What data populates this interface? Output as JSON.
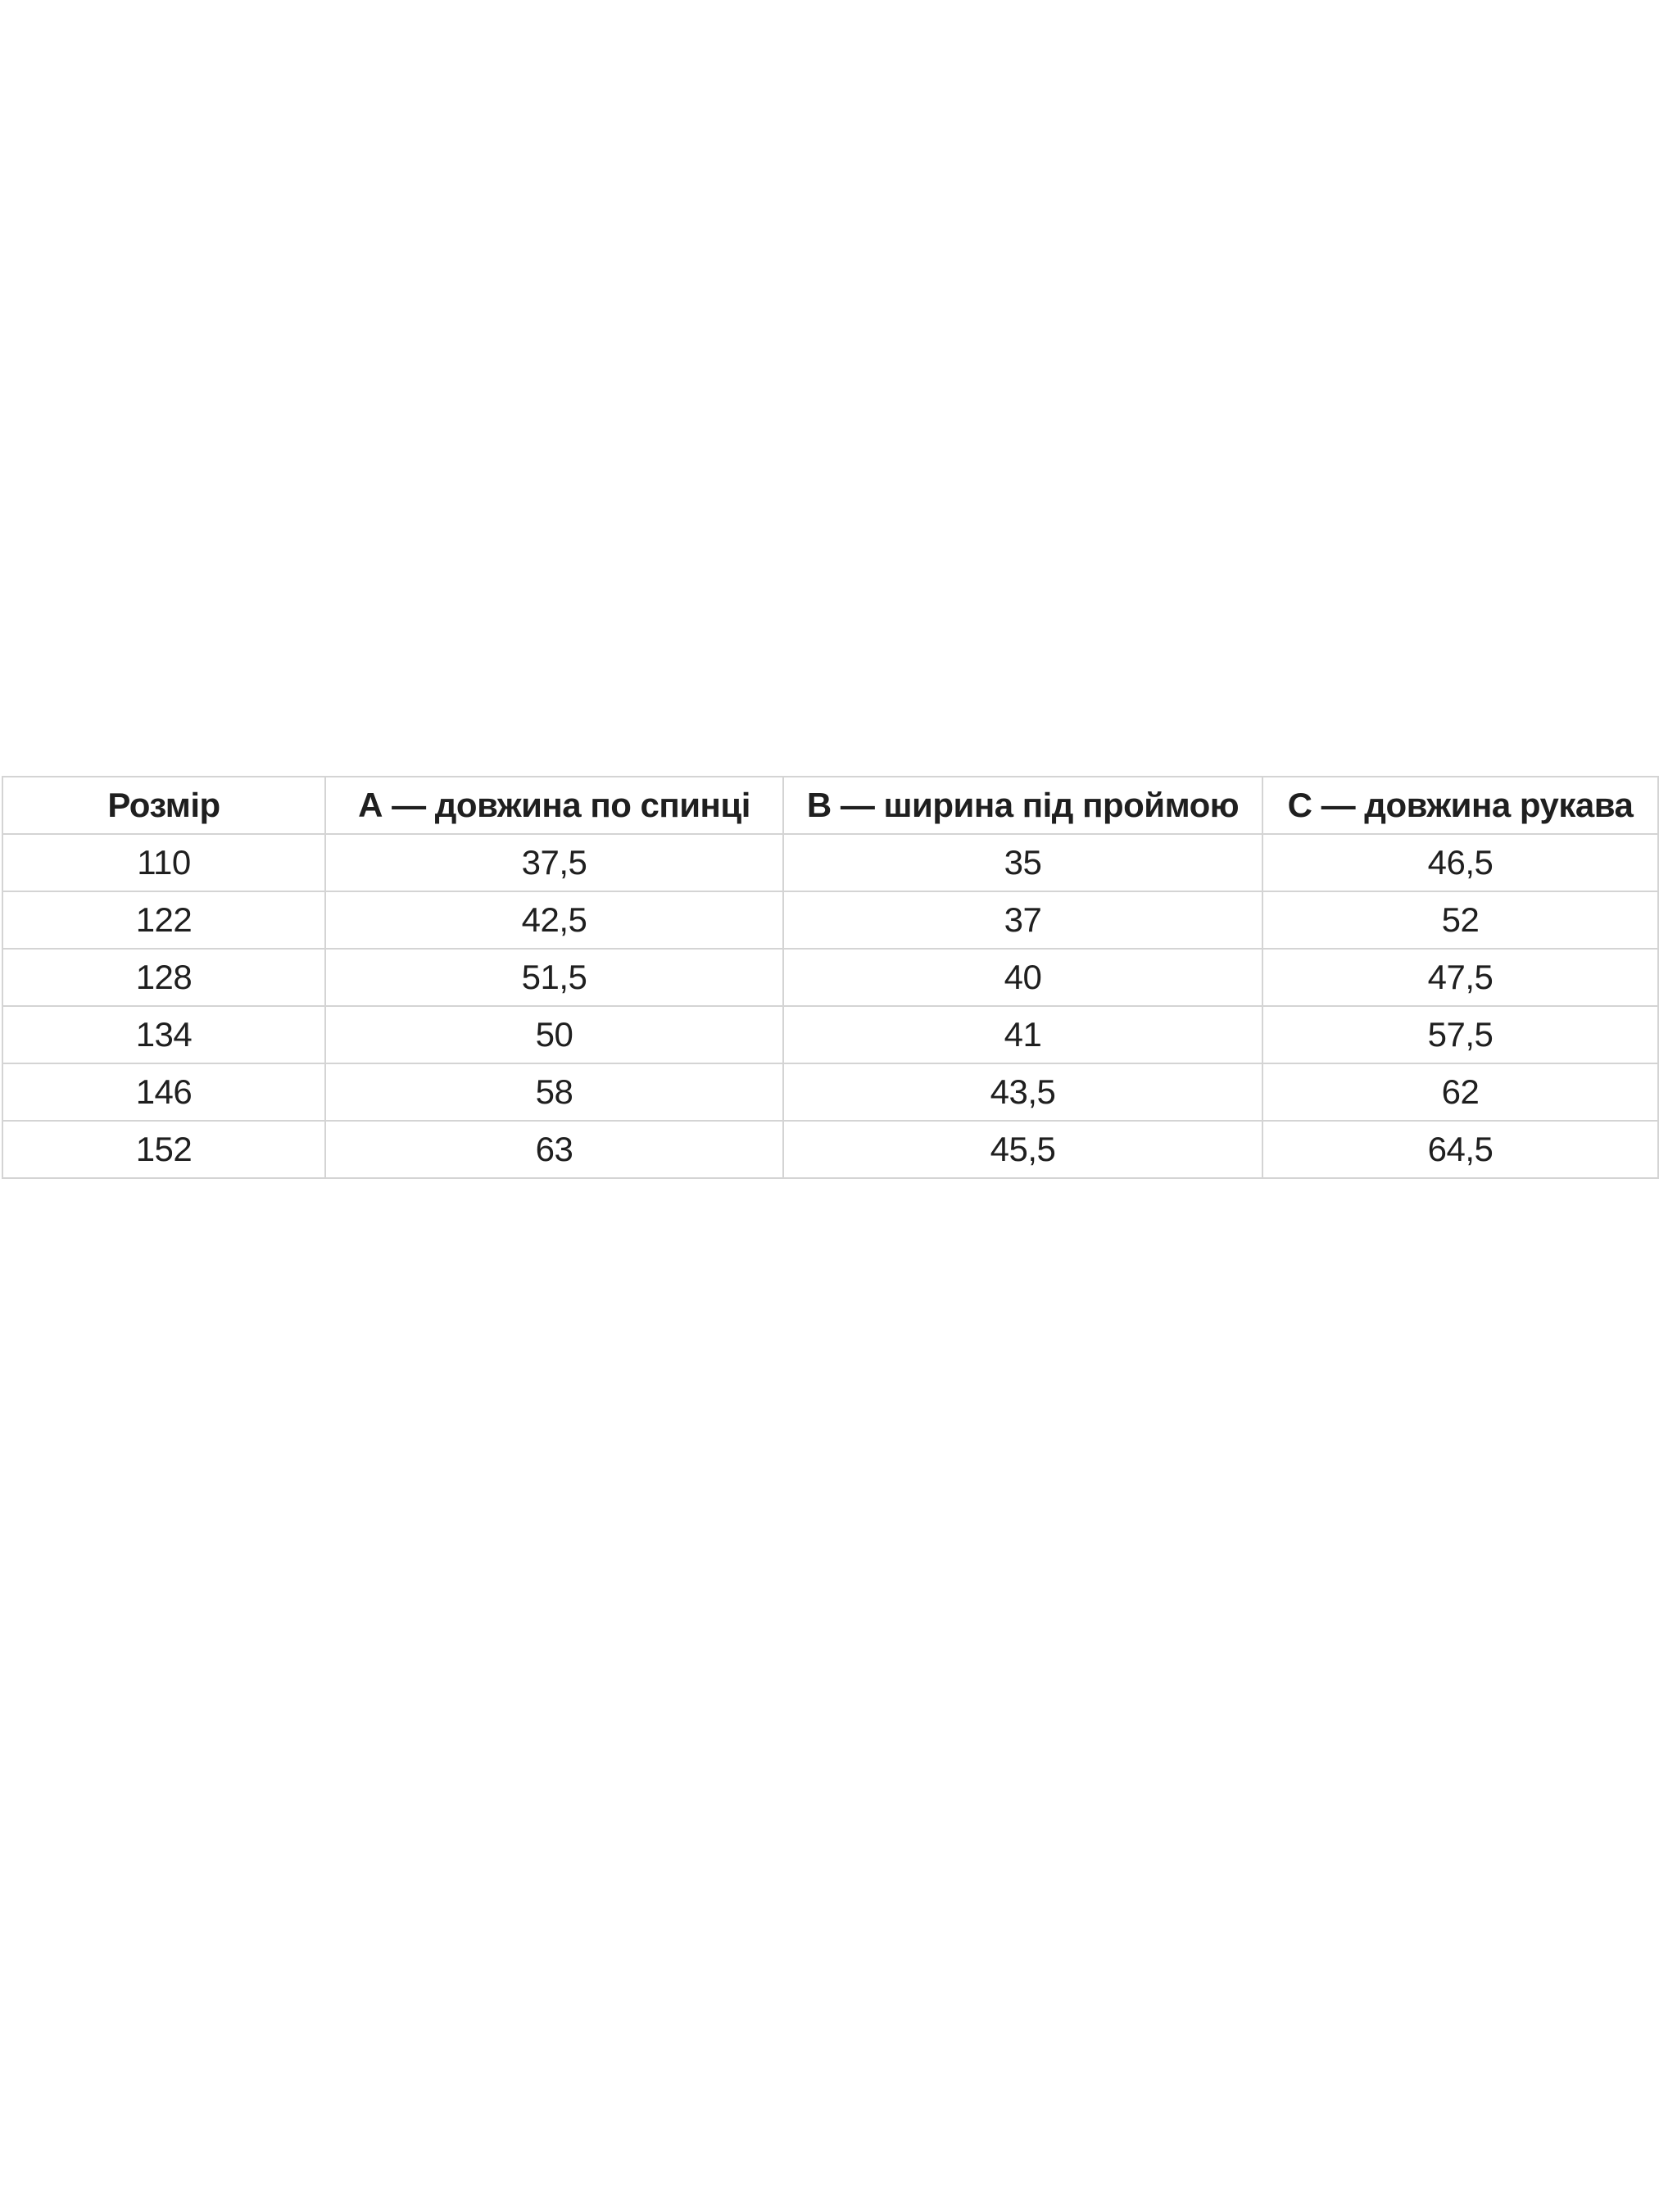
{
  "page": {
    "background": "#ffffff"
  },
  "table": {
    "border_color": "#d4d4d4",
    "text_color": "#1f1f1f",
    "columns": [
      "Розмір",
      "А — довжина по спинці",
      "В — ширина під проймою",
      "С — довжина рукава"
    ],
    "rows": [
      [
        "110",
        "37,5",
        "35",
        "46,5"
      ],
      [
        "122",
        "42,5",
        "37",
        "52"
      ],
      [
        "128",
        "51,5",
        "40",
        "47,5"
      ],
      [
        "134",
        "50",
        "41",
        "57,5"
      ],
      [
        "146",
        "58",
        "43,5",
        "62"
      ],
      [
        "152",
        "63",
        "45,5",
        "64,5"
      ]
    ]
  }
}
